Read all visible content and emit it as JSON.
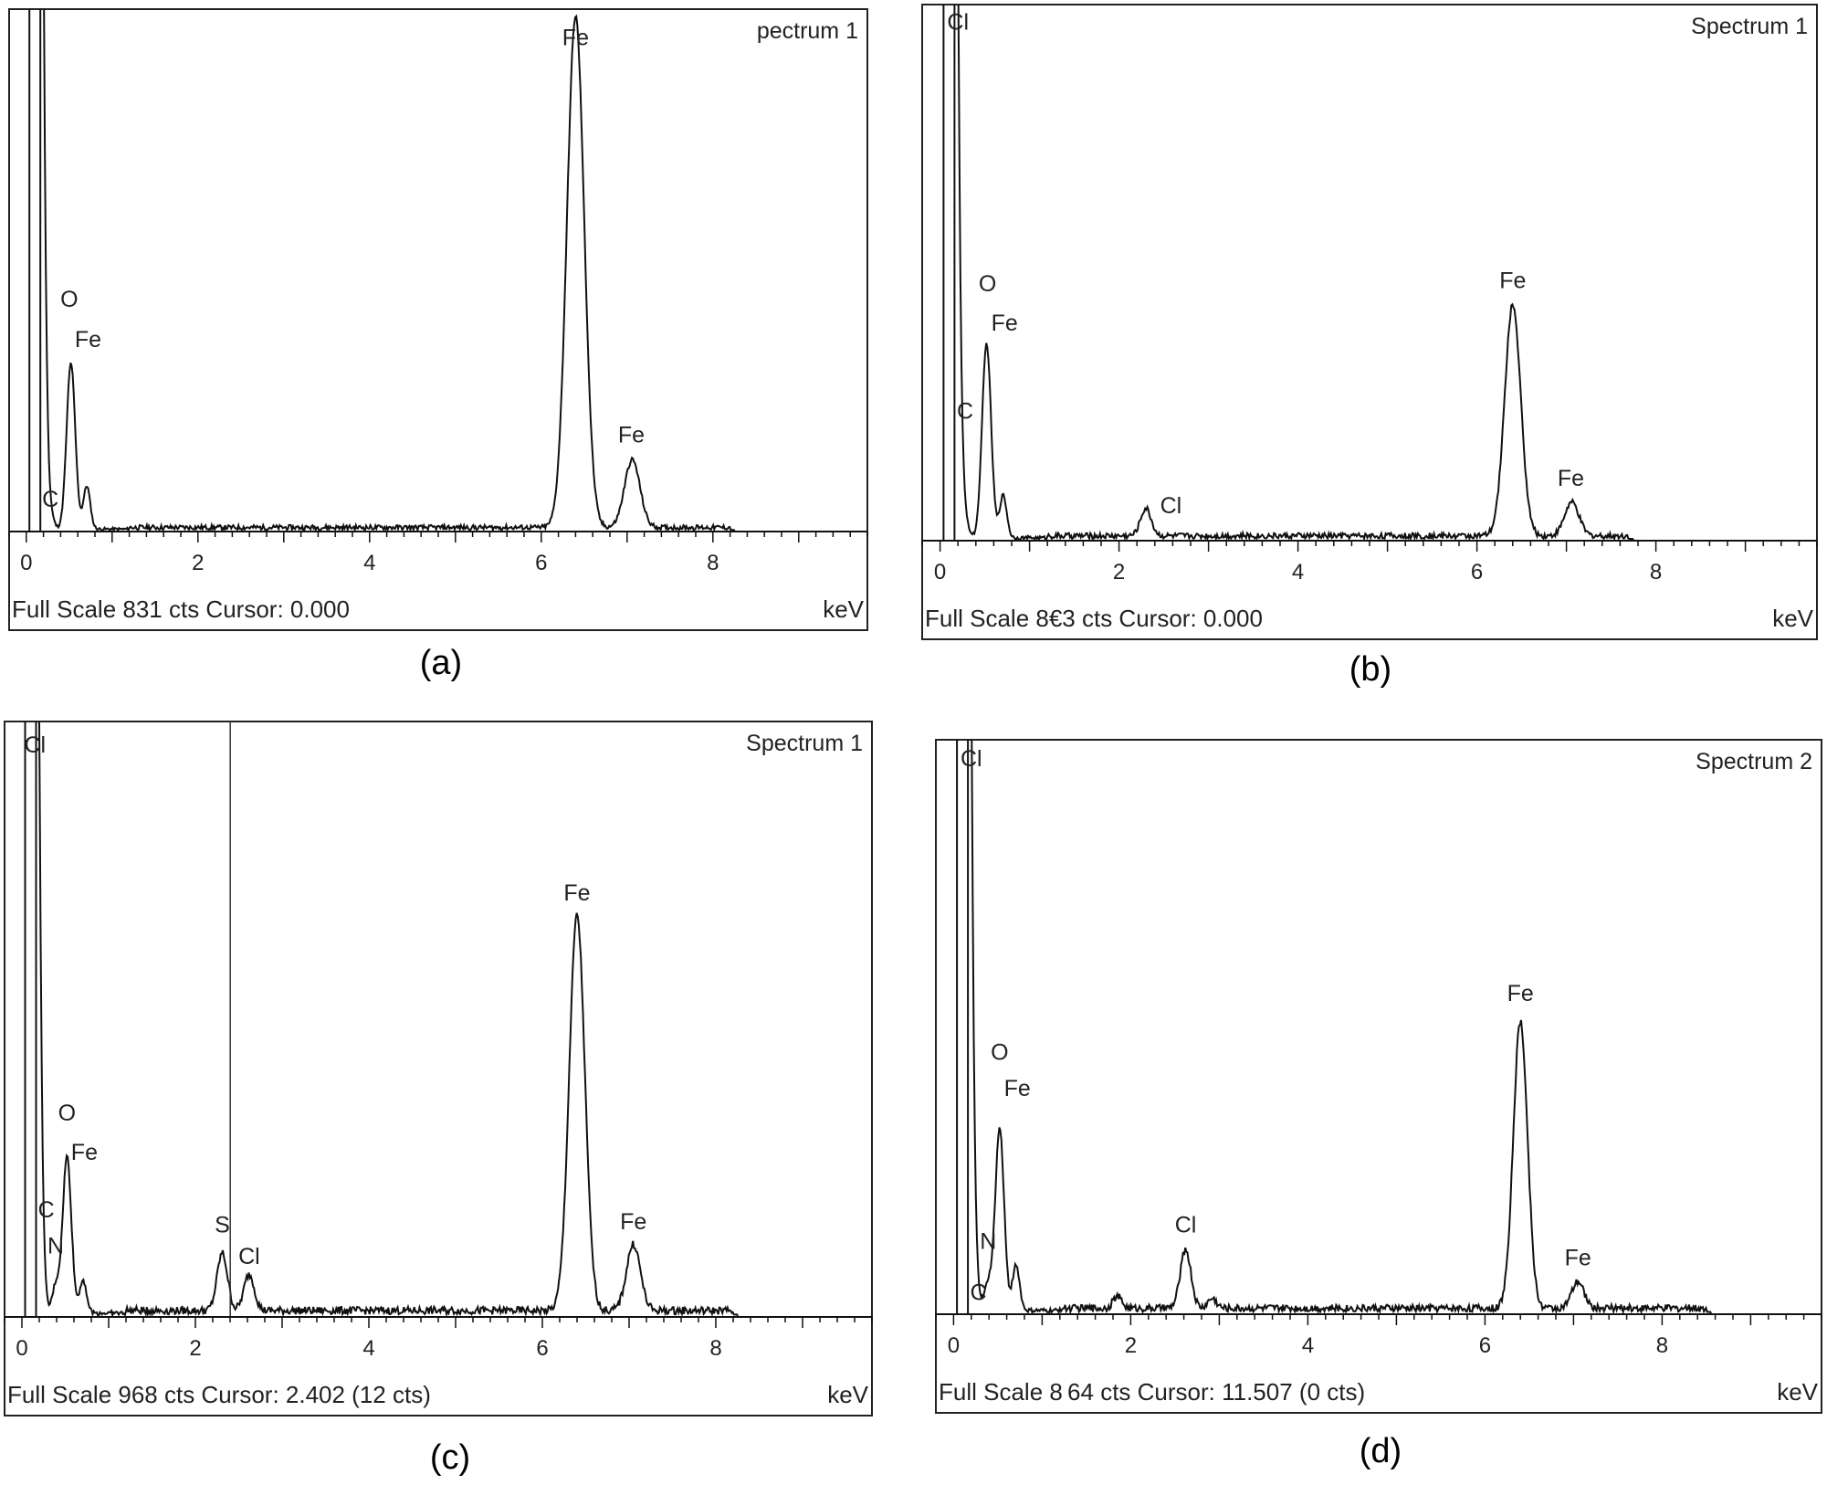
{
  "panels": [
    {
      "caption": "(a)",
      "chart_data": {
        "type": "line",
        "title": "pectrum 1",
        "footer": "Full Scale 831 cts Cursor: 0.000",
        "unit": "keV",
        "xlim": [
          -0.2,
          9.8
        ],
        "ylim": [
          0,
          831
        ],
        "xticks": [
          0,
          2,
          4,
          6,
          8
        ],
        "cursor": null,
        "peaks": [
          {
            "x": 0.1,
            "y": 4000,
            "w": 0.06
          },
          {
            "x": 0.28,
            "y": 20,
            "w": 0.04
          },
          {
            "x": 0.52,
            "y": 270,
            "w": 0.05
          },
          {
            "x": 0.705,
            "y": 70,
            "w": 0.04
          },
          {
            "x": 6.4,
            "y": 831,
            "w": 0.1
          },
          {
            "x": 7.06,
            "y": 110,
            "w": 0.09
          }
        ],
        "baseline": 5,
        "noise_end": 8.2,
        "labels": [
          {
            "text": "C",
            "x": 0.28,
            "y": 40
          },
          {
            "text": "O",
            "x": 0.5,
            "y": 365
          },
          {
            "text": "Fe",
            "x": 0.72,
            "y": 300
          },
          {
            "text": "Fe",
            "x": 6.4,
            "y": 790
          },
          {
            "text": "Fe",
            "x": 7.05,
            "y": 145
          }
        ]
      }
    },
    {
      "caption": "(b)",
      "chart_data": {
        "type": "line",
        "title": "Spectrum 1",
        "footer": "Full Scale 8€3 cts Cursor: 0.000",
        "unit": "keV",
        "xlim": [
          -0.2,
          9.8
        ],
        "ylim": [
          0,
          863
        ],
        "xticks": [
          0,
          2,
          4,
          6,
          8
        ],
        "cursor": null,
        "peaks": [
          {
            "x": 0.1,
            "y": 4000,
            "w": 0.06
          },
          {
            "x": 0.28,
            "y": 25,
            "w": 0.04
          },
          {
            "x": 0.52,
            "y": 320,
            "w": 0.05
          },
          {
            "x": 0.705,
            "y": 70,
            "w": 0.04
          },
          {
            "x": 2.3,
            "y": 45,
            "w": 0.06
          },
          {
            "x": 6.4,
            "y": 380,
            "w": 0.09
          },
          {
            "x": 7.06,
            "y": 55,
            "w": 0.08
          }
        ],
        "baseline": 6,
        "noise_end": 7.7,
        "labels": [
          {
            "text": "Cl",
            "x": 0.2,
            "y": 840
          },
          {
            "text": "C",
            "x": 0.28,
            "y": 200
          },
          {
            "text": "O",
            "x": 0.53,
            "y": 410
          },
          {
            "text": "Fe",
            "x": 0.72,
            "y": 345
          },
          {
            "text": "Cl",
            "x": 2.58,
            "y": 45
          },
          {
            "text": "Fe",
            "x": 6.4,
            "y": 415
          },
          {
            "text": "Fe",
            "x": 7.05,
            "y": 90
          }
        ]
      }
    },
    {
      "caption": "(c)",
      "chart_data": {
        "type": "line",
        "title": "Spectrum 1",
        "footer": "Full Scale 968 cts Cursor: 2.402  (12 cts)",
        "unit": "keV",
        "xlim": [
          -0.2,
          9.8
        ],
        "ylim": [
          0,
          968
        ],
        "xticks": [
          0,
          2,
          4,
          6,
          8
        ],
        "cursor": 2.402,
        "peaks": [
          {
            "x": 0.1,
            "y": 4000,
            "w": 0.06
          },
          {
            "x": 0.39,
            "y": 45,
            "w": 0.04
          },
          {
            "x": 0.52,
            "y": 260,
            "w": 0.05
          },
          {
            "x": 0.705,
            "y": 55,
            "w": 0.04
          },
          {
            "x": 2.31,
            "y": 95,
            "w": 0.06
          },
          {
            "x": 2.62,
            "y": 60,
            "w": 0.06
          },
          {
            "x": 6.4,
            "y": 655,
            "w": 0.09
          },
          {
            "x": 7.05,
            "y": 110,
            "w": 0.08
          }
        ],
        "baseline": 8,
        "noise_end": 8.2,
        "labels": [
          {
            "text": "Cl",
            "x": 0.15,
            "y": 935
          },
          {
            "text": "O",
            "x": 0.52,
            "y": 325
          },
          {
            "text": "Fe",
            "x": 0.72,
            "y": 260
          },
          {
            "text": "C",
            "x": 0.28,
            "y": 165
          },
          {
            "text": "N",
            "x": 0.39,
            "y": 105
          },
          {
            "text": "S",
            "x": 2.31,
            "y": 140
          },
          {
            "text": "Cl",
            "x": 2.62,
            "y": 88
          },
          {
            "text": "Fe",
            "x": 6.4,
            "y": 690
          },
          {
            "text": "Fe",
            "x": 7.05,
            "y": 145
          }
        ]
      }
    },
    {
      "caption": "(d)",
      "chart_data": {
        "type": "line",
        "title": "Spectrum 2",
        "footer": "Full Scalе 8 64 cts Cursor: 11.507  (0 cts)",
        "unit": "keV",
        "xlim": [
          -0.2,
          9.8
        ],
        "ylim": [
          0,
          864
        ],
        "xticks": [
          0,
          2,
          4,
          6,
          8
        ],
        "cursor": null,
        "peaks": [
          {
            "x": 0.1,
            "y": 4000,
            "w": 0.06
          },
          {
            "x": 0.28,
            "y": 12,
            "w": 0.04
          },
          {
            "x": 0.39,
            "y": 40,
            "w": 0.04
          },
          {
            "x": 0.52,
            "y": 280,
            "w": 0.05
          },
          {
            "x": 0.705,
            "y": 70,
            "w": 0.04
          },
          {
            "x": 1.85,
            "y": 18,
            "w": 0.05
          },
          {
            "x": 2.62,
            "y": 90,
            "w": 0.06
          },
          {
            "x": 2.92,
            "y": 15,
            "w": 0.05
          },
          {
            "x": 6.4,
            "y": 440,
            "w": 0.08
          },
          {
            "x": 7.05,
            "y": 40,
            "w": 0.07
          }
        ],
        "baseline": 7,
        "noise_end": 8.5,
        "labels": [
          {
            "text": "Cl",
            "x": 0.2,
            "y": 840
          },
          {
            "text": "O",
            "x": 0.52,
            "y": 390
          },
          {
            "text": "Fe",
            "x": 0.72,
            "y": 335
          },
          {
            "text": "N",
            "x": 0.39,
            "y": 100
          },
          {
            "text": "C",
            "x": 0.28,
            "y": 22
          },
          {
            "text": "Cl",
            "x": 2.62,
            "y": 125
          },
          {
            "text": "Fe",
            "x": 6.4,
            "y": 480
          },
          {
            "text": "Fe",
            "x": 7.05,
            "y": 75
          }
        ]
      }
    }
  ]
}
